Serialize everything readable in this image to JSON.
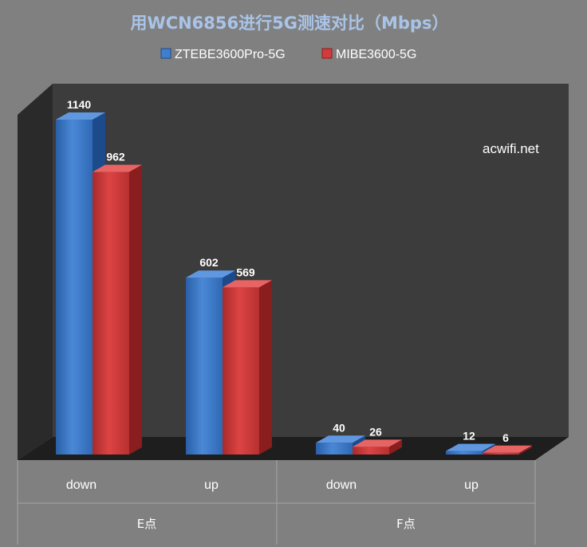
{
  "colors": {
    "background": "#808080",
    "title": "#a9c4e8",
    "plot_back": "#3c3c3c",
    "series": [
      "#3f7fd0",
      "#d33b3b"
    ]
  },
  "watermark": "acwifi.net",
  "chart_data": {
    "type": "bar",
    "style": "3d-clustered-column",
    "title": "用WCN6856进行5G测速对比（Mbps）",
    "categories": [
      "down",
      "up",
      "down",
      "up"
    ],
    "groups": [
      {
        "label": "E点",
        "categories": [
          "down",
          "up"
        ]
      },
      {
        "label": "F点",
        "categories": [
          "down",
          "up"
        ]
      }
    ],
    "series": [
      {
        "name": "ZTEBE3600Pro-5G",
        "values": [
          1140,
          602,
          40,
          12
        ]
      },
      {
        "name": "MIBE3600-5G",
        "values": [
          962,
          569,
          26,
          6
        ]
      }
    ],
    "ylim": [
      0,
      1200
    ],
    "grid": false,
    "legend_position": "top",
    "data_labels": true
  }
}
